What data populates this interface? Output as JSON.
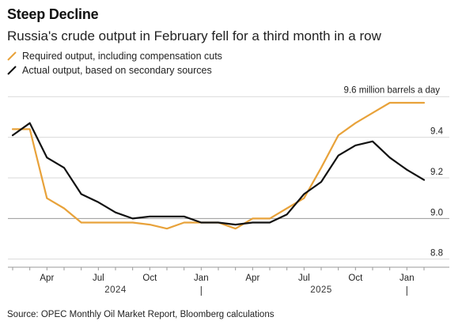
{
  "header": {
    "title": "Steep Decline",
    "subtitle": "Russia's crude output in February fell for a third month in a row"
  },
  "legend": [
    {
      "label": "Required output, including compensation cuts",
      "color": "#e8a23a",
      "icon": "line-swatch-orange"
    },
    {
      "label": "Actual output, based on secondary sources",
      "color": "#111111",
      "icon": "line-swatch-black"
    }
  ],
  "footer": {
    "source": "Source: OPEC Monthly Oil Market Report, Bloomberg calculations"
  },
  "chart_data": {
    "type": "line",
    "title": "Steep Decline",
    "subtitle": "Russia's crude output in February fell for a third month in a row",
    "x": [
      "2024-02",
      "2024-03",
      "2024-04",
      "2024-05",
      "2024-06",
      "2024-07",
      "2024-08",
      "2024-09",
      "2024-10",
      "2024-11",
      "2024-12",
      "2025-01",
      "2025-02",
      "2025-03",
      "2025-04",
      "2025-05",
      "2025-06",
      "2025-07",
      "2025-08",
      "2025-09",
      "2025-10",
      "2025-11",
      "2025-12",
      "2026-01",
      "2026-02"
    ],
    "series": [
      {
        "name": "Required output, including compensation cuts",
        "color": "#e8a23a",
        "values": [
          9.44,
          9.44,
          9.1,
          9.05,
          8.98,
          8.98,
          8.98,
          8.98,
          8.97,
          8.95,
          8.98,
          8.98,
          8.98,
          8.95,
          9.0,
          9.0,
          9.05,
          9.1,
          9.25,
          9.41,
          9.47,
          9.52,
          9.57,
          9.57,
          9.57
        ]
      },
      {
        "name": "Actual output, based on secondary sources",
        "color": "#111111",
        "values": [
          9.41,
          9.47,
          9.3,
          9.25,
          9.12,
          9.08,
          9.03,
          9.0,
          9.01,
          9.01,
          9.01,
          8.98,
          8.98,
          8.97,
          8.98,
          8.98,
          9.02,
          9.12,
          9.18,
          9.31,
          9.36,
          9.38,
          9.3,
          9.24,
          9.19
        ]
      }
    ],
    "annotation": "9.6 million barrels a day",
    "y_ticks": [
      8.8,
      9.0,
      9.2,
      9.4
    ],
    "y_tick_labels": [
      "8.8",
      "9.0",
      "9.2",
      "9.4"
    ],
    "ylim": [
      8.76,
      9.64
    ],
    "x_ticks": [
      {
        "label": "Apr",
        "at": "2024-04"
      },
      {
        "label": "Jul",
        "at": "2024-07"
      },
      {
        "label": "Oct",
        "at": "2024-10"
      },
      {
        "label": "Jan",
        "at": "2025-01"
      },
      {
        "label": "Apr",
        "at": "2025-04"
      },
      {
        "label": "Jul",
        "at": "2025-07"
      },
      {
        "label": "Oct",
        "at": "2025-10"
      },
      {
        "label": "Jan",
        "at": "2026-01"
      }
    ],
    "year_labels": [
      {
        "label": "2024",
        "at": "2024-08"
      },
      {
        "label": "2025",
        "at": "2025-08"
      }
    ],
    "year_separators": [
      "2025-01",
      "2026-01"
    ],
    "grid": true,
    "legend_position": "top-left"
  }
}
